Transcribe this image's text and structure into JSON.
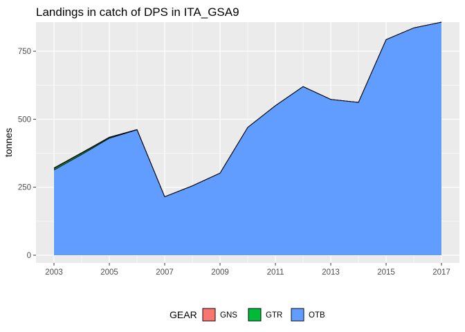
{
  "chart_data": {
    "type": "area",
    "stacked": true,
    "title": "Landings in catch of DPS in ITA_GSA9",
    "xlabel": "",
    "ylabel": "tonnes",
    "x": [
      2003,
      2004,
      2005,
      2006,
      2007,
      2008,
      2009,
      2010,
      2011,
      2012,
      2013,
      2014,
      2015,
      2016,
      2017
    ],
    "x_ticks": [
      "2003",
      "2005",
      "2007",
      "2009",
      "2011",
      "2013",
      "2015",
      "2017"
    ],
    "y_ticks": [
      "0",
      "250",
      "500",
      "750"
    ],
    "xlim": [
      2002.35,
      2017.65
    ],
    "ylim": [
      -28,
      857
    ],
    "grid": true,
    "legend_position": "bottom",
    "legend_title": "GEAR",
    "series": [
      {
        "name": "GNS",
        "color": "#F8766D",
        "values": [
          2,
          2,
          1,
          0,
          0,
          0,
          0,
          0,
          0,
          0,
          0,
          0,
          0,
          0,
          0
        ]
      },
      {
        "name": "GTR",
        "color": "#00BA38",
        "values": [
          6,
          5,
          3,
          1,
          0,
          0,
          0,
          0,
          0,
          0,
          0,
          0,
          0,
          0,
          0
        ]
      },
      {
        "name": "OTB",
        "color": "#619CFF",
        "values": [
          313,
          370,
          430,
          461,
          215,
          255,
          302,
          470,
          550,
          620,
          573,
          562,
          793,
          836,
          857
        ]
      }
    ]
  }
}
